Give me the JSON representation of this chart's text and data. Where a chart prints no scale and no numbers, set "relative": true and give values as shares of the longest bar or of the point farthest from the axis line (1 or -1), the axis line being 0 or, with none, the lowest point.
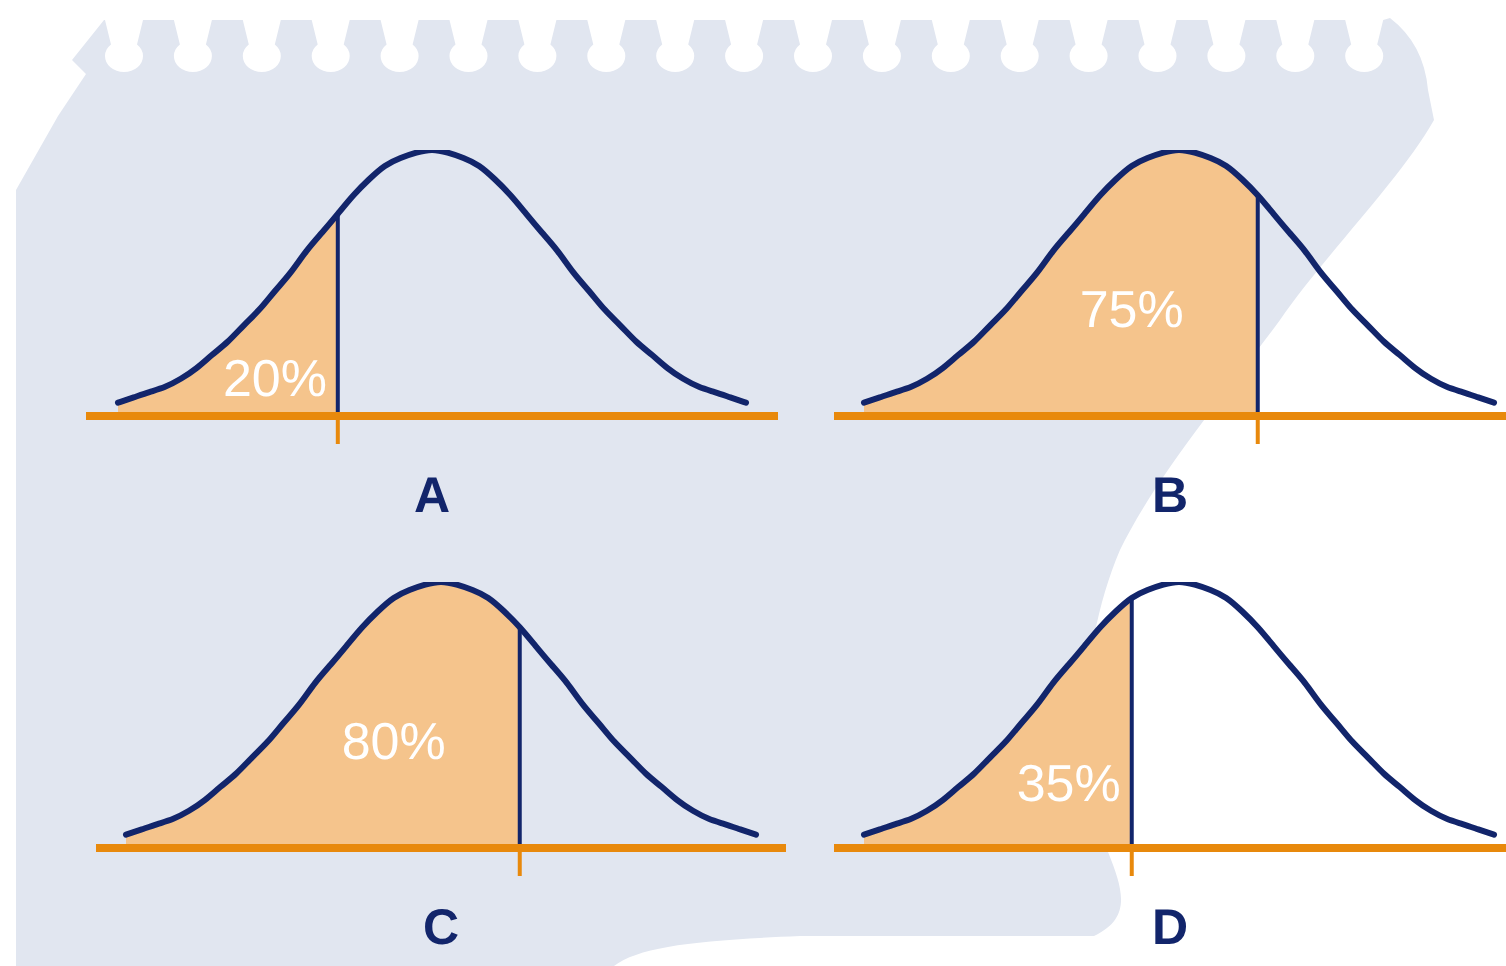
{
  "chart_data": [
    {
      "type": "line",
      "relative": true,
      "xlabel": "A",
      "annotations": [
        "20%"
      ],
      "categories": [
        null,
        null,
        null,
        null,
        null,
        null,
        null,
        null,
        null,
        null,
        null,
        null,
        null,
        null,
        null,
        null,
        null,
        null,
        null,
        null,
        null,
        null,
        null,
        null,
        null,
        null,
        null,
        null,
        null,
        null,
        null,
        null,
        null,
        null,
        null,
        null,
        null,
        null,
        null,
        null,
        null
      ],
      "series": [
        {
          "type": "area",
          "color": "#f5c48c",
          "values": [
            0.05,
            0.07,
            0.09,
            0.11,
            0.14,
            0.18,
            0.23,
            0.28,
            0.34,
            0.4,
            0.47,
            0.54,
            0.62,
            0.69,
            0.76,
            null,
            null,
            null,
            null,
            null,
            null,
            null,
            null,
            null,
            null,
            null,
            null,
            null,
            null,
            null,
            null,
            null,
            null,
            null,
            null,
            null,
            null,
            null,
            null,
            null,
            null
          ]
        },
        {
          "type": "line",
          "color": "#12256b",
          "values": [
            0.05,
            0.07,
            0.09,
            0.11,
            0.14,
            0.18,
            0.23,
            0.28,
            0.34,
            0.4,
            0.47,
            0.54,
            0.62,
            0.69,
            0.76,
            0.83,
            0.89,
            0.94,
            0.97,
            0.99,
            1,
            0.99,
            0.97,
            0.94,
            0.89,
            0.83,
            0.76,
            0.69,
            0.62,
            0.54,
            0.47,
            0.4,
            0.34,
            0.28,
            0.23,
            0.18,
            0.14,
            0.11,
            0.09,
            0.07,
            0.05
          ]
        }
      ]
    },
    {
      "type": "line",
      "relative": true,
      "xlabel": "B",
      "annotations": [
        "75%"
      ],
      "categories": [
        null,
        null,
        null,
        null,
        null,
        null,
        null,
        null,
        null,
        null,
        null,
        null,
        null,
        null,
        null,
        null,
        null,
        null,
        null,
        null,
        null,
        null,
        null,
        null,
        null,
        null,
        null,
        null,
        null,
        null,
        null,
        null,
        null,
        null,
        null,
        null,
        null,
        null,
        null,
        null,
        null
      ],
      "series": [
        {
          "type": "area",
          "color": "#f5c48c",
          "values": [
            0.05,
            0.07,
            0.09,
            0.11,
            0.14,
            0.18,
            0.23,
            0.28,
            0.34,
            0.4,
            0.47,
            0.54,
            0.62,
            0.69,
            0.76,
            0.83,
            0.89,
            0.94,
            0.97,
            0.99,
            1,
            0.99,
            0.97,
            0.94,
            0.89,
            0.83,
            null,
            null,
            null,
            null,
            null,
            null,
            null,
            null,
            null,
            null,
            null,
            null,
            null,
            null,
            null
          ]
        },
        {
          "type": "line",
          "color": "#12256b",
          "values": [
            0.05,
            0.07,
            0.09,
            0.11,
            0.14,
            0.18,
            0.23,
            0.28,
            0.34,
            0.4,
            0.47,
            0.54,
            0.62,
            0.69,
            0.76,
            0.83,
            0.89,
            0.94,
            0.97,
            0.99,
            1,
            0.99,
            0.97,
            0.94,
            0.89,
            0.83,
            0.76,
            0.69,
            0.62,
            0.54,
            0.47,
            0.4,
            0.34,
            0.28,
            0.23,
            0.18,
            0.14,
            0.11,
            0.09,
            0.07,
            0.05
          ]
        }
      ]
    },
    {
      "type": "line",
      "relative": true,
      "xlabel": "C",
      "annotations": [
        "80%"
      ],
      "categories": [
        null,
        null,
        null,
        null,
        null,
        null,
        null,
        null,
        null,
        null,
        null,
        null,
        null,
        null,
        null,
        null,
        null,
        null,
        null,
        null,
        null,
        null,
        null,
        null,
        null,
        null,
        null,
        null,
        null,
        null,
        null,
        null,
        null,
        null,
        null,
        null,
        null,
        null,
        null,
        null,
        null
      ],
      "series": [
        {
          "type": "area",
          "color": "#f5c48c",
          "values": [
            0.05,
            0.07,
            0.09,
            0.11,
            0.14,
            0.18,
            0.23,
            0.28,
            0.34,
            0.4,
            0.47,
            0.54,
            0.62,
            0.69,
            0.76,
            0.83,
            0.89,
            0.94,
            0.97,
            0.99,
            1,
            0.99,
            0.97,
            0.94,
            0.89,
            0.83,
            null,
            null,
            null,
            null,
            null,
            null,
            null,
            null,
            null,
            null,
            null,
            null,
            null,
            null,
            null
          ]
        },
        {
          "type": "line",
          "color": "#12256b",
          "values": [
            0.05,
            0.07,
            0.09,
            0.11,
            0.14,
            0.18,
            0.23,
            0.28,
            0.34,
            0.4,
            0.47,
            0.54,
            0.62,
            0.69,
            0.76,
            0.83,
            0.89,
            0.94,
            0.97,
            0.99,
            1,
            0.99,
            0.97,
            0.94,
            0.89,
            0.83,
            0.76,
            0.69,
            0.62,
            0.54,
            0.47,
            0.4,
            0.34,
            0.28,
            0.23,
            0.18,
            0.14,
            0.11,
            0.09,
            0.07,
            0.05
          ]
        }
      ]
    },
    {
      "type": "line",
      "relative": true,
      "xlabel": "D",
      "annotations": [
        "35%"
      ],
      "categories": [
        null,
        null,
        null,
        null,
        null,
        null,
        null,
        null,
        null,
        null,
        null,
        null,
        null,
        null,
        null,
        null,
        null,
        null,
        null,
        null,
        null,
        null,
        null,
        null,
        null,
        null,
        null,
        null,
        null,
        null,
        null,
        null,
        null,
        null,
        null,
        null,
        null,
        null,
        null,
        null,
        null
      ],
      "series": [
        {
          "type": "area",
          "color": "#f5c48c",
          "values": [
            0.05,
            0.07,
            0.09,
            0.11,
            0.14,
            0.18,
            0.23,
            0.28,
            0.34,
            0.4,
            0.47,
            0.54,
            0.62,
            0.69,
            0.76,
            0.83,
            0.89,
            0.94,
            null,
            null,
            null,
            null,
            null,
            null,
            null,
            null,
            null,
            null,
            null,
            null,
            null,
            null,
            null,
            null,
            null,
            null,
            null,
            null,
            null,
            null,
            null
          ]
        },
        {
          "type": "line",
          "color": "#12256b",
          "values": [
            0.05,
            0.07,
            0.09,
            0.11,
            0.14,
            0.18,
            0.23,
            0.28,
            0.34,
            0.4,
            0.47,
            0.54,
            0.62,
            0.69,
            0.76,
            0.83,
            0.89,
            0.94,
            0.97,
            0.99,
            1,
            0.99,
            0.97,
            0.94,
            0.89,
            0.83,
            0.76,
            0.69,
            0.62,
            0.54,
            0.47,
            0.4,
            0.34,
            0.28,
            0.23,
            0.18,
            0.14,
            0.11,
            0.09,
            0.07,
            0.05
          ]
        }
      ]
    }
  ]
}
